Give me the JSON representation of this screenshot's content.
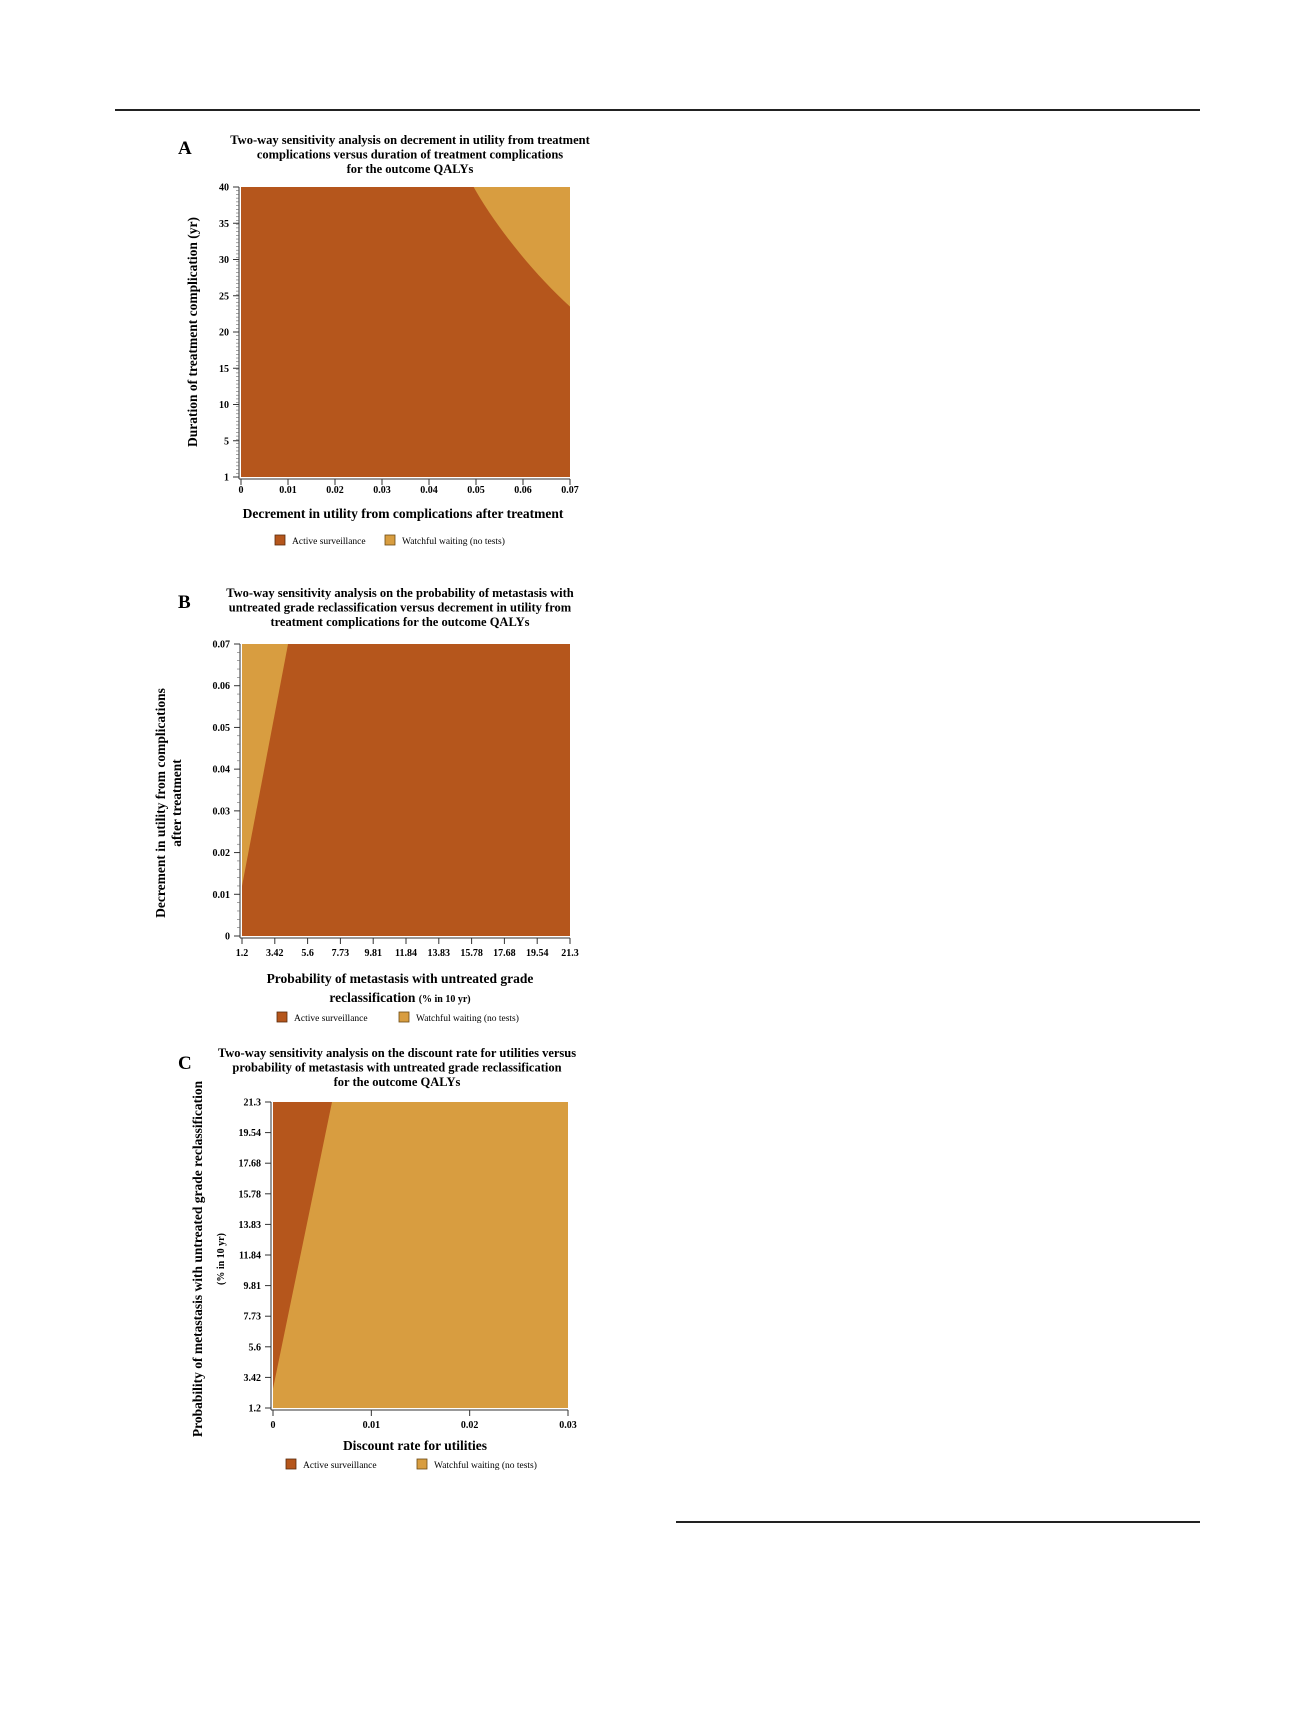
{
  "colors": {
    "active": "#b5561c",
    "watchful": "#d89d40"
  },
  "legend": {
    "active": "Active surveillance",
    "watchful": "Watchful waiting (no tests)"
  },
  "chart_data": [
    {
      "panel": "A",
      "type": "heatmap",
      "title_lines": [
        "Two-way sensitivity analysis on decrement in utility from treatment",
        "complications versus duration of treatment complications",
        "for the outcome QALYs"
      ],
      "xlabel": "Decrement in utility from complications after treatment",
      "xlabel_sub": "",
      "ylabel": [
        "Duration of treatment complication (yr)"
      ],
      "xticks": [
        "0",
        "0.01",
        "0.02",
        "0.03",
        "0.04",
        "0.05",
        "0.06",
        "0.07"
      ],
      "yticks": [
        "1",
        "5",
        "10",
        "15",
        "20",
        "25",
        "30",
        "35",
        "40"
      ],
      "xlim": [
        0,
        0.07
      ],
      "ylim": [
        1,
        40
      ],
      "regions": [
        {
          "strategy": "Active surveillance",
          "description": "below boundary"
        },
        {
          "strategy": "Watchful waiting (no tests)",
          "description": "upper-right corner"
        }
      ],
      "boundary": [
        [
          0.0495,
          40
        ],
        [
          0.0535,
          35
        ],
        [
          0.058,
          31.5
        ],
        [
          0.0625,
          28
        ],
        [
          0.0665,
          25.5
        ],
        [
          0.07,
          23.5
        ]
      ]
    },
    {
      "panel": "B",
      "type": "heatmap",
      "title_lines": [
        "Two-way sensitivity analysis on the probability of metastasis with",
        "untreated grade reclassification versus decrement in utility from",
        "treatment complications for the outcome QALYs"
      ],
      "xlabel": "Probability of metastasis with untreated grade reclassification",
      "xlabel_sub": "(% in 10 yr)",
      "ylabel": [
        "Decrement in utility from complications",
        "after treatment"
      ],
      "xticks": [
        "1.2",
        "3.42",
        "5.6",
        "7.73",
        "9.81",
        "11.84",
        "13.83",
        "15.78",
        "17.68",
        "19.54",
        "21.3"
      ],
      "yticks": [
        "0",
        "0.01",
        "0.02",
        "0.03",
        "0.04",
        "0.05",
        "0.06",
        "0.07"
      ],
      "xlim": [
        1.2,
        21.3
      ],
      "ylim": [
        0,
        0.07
      ],
      "regions": [
        {
          "strategy": "Watchful waiting (no tests)",
          "description": "upper-left wedge"
        },
        {
          "strategy": "Active surveillance",
          "description": "rest of plane"
        }
      ],
      "boundary": [
        [
          1.2,
          0.012
        ],
        [
          4.3,
          0.07
        ]
      ]
    },
    {
      "panel": "C",
      "type": "heatmap",
      "title_lines": [
        "Two-way sensitivity analysis on the discount rate for utilities versus",
        "probability of metastasis with untreated grade reclassification",
        "for the outcome QALYs"
      ],
      "xlabel": "Discount rate for utilities",
      "xlabel_sub": "",
      "ylabel": [
        "Probability of metastasis with untreated grade reclassification",
        "(% in 10 yr)"
      ],
      "xticks": [
        "0",
        "0.01",
        "0.02",
        "0.03"
      ],
      "yticks": [
        "1.2",
        "3.42",
        "5.6",
        "7.73",
        "9.81",
        "11.84",
        "13.83",
        "15.78",
        "17.68",
        "19.54",
        "21.3"
      ],
      "xlim": [
        0,
        0.03
      ],
      "ylim": [
        1.2,
        21.3
      ],
      "regions": [
        {
          "strategy": "Active surveillance",
          "description": "upper-left wedge"
        },
        {
          "strategy": "Watchful waiting (no tests)",
          "description": "rest of plane"
        }
      ],
      "boundary": [
        [
          0,
          2.6
        ],
        [
          0.006,
          21.3
        ]
      ]
    }
  ]
}
